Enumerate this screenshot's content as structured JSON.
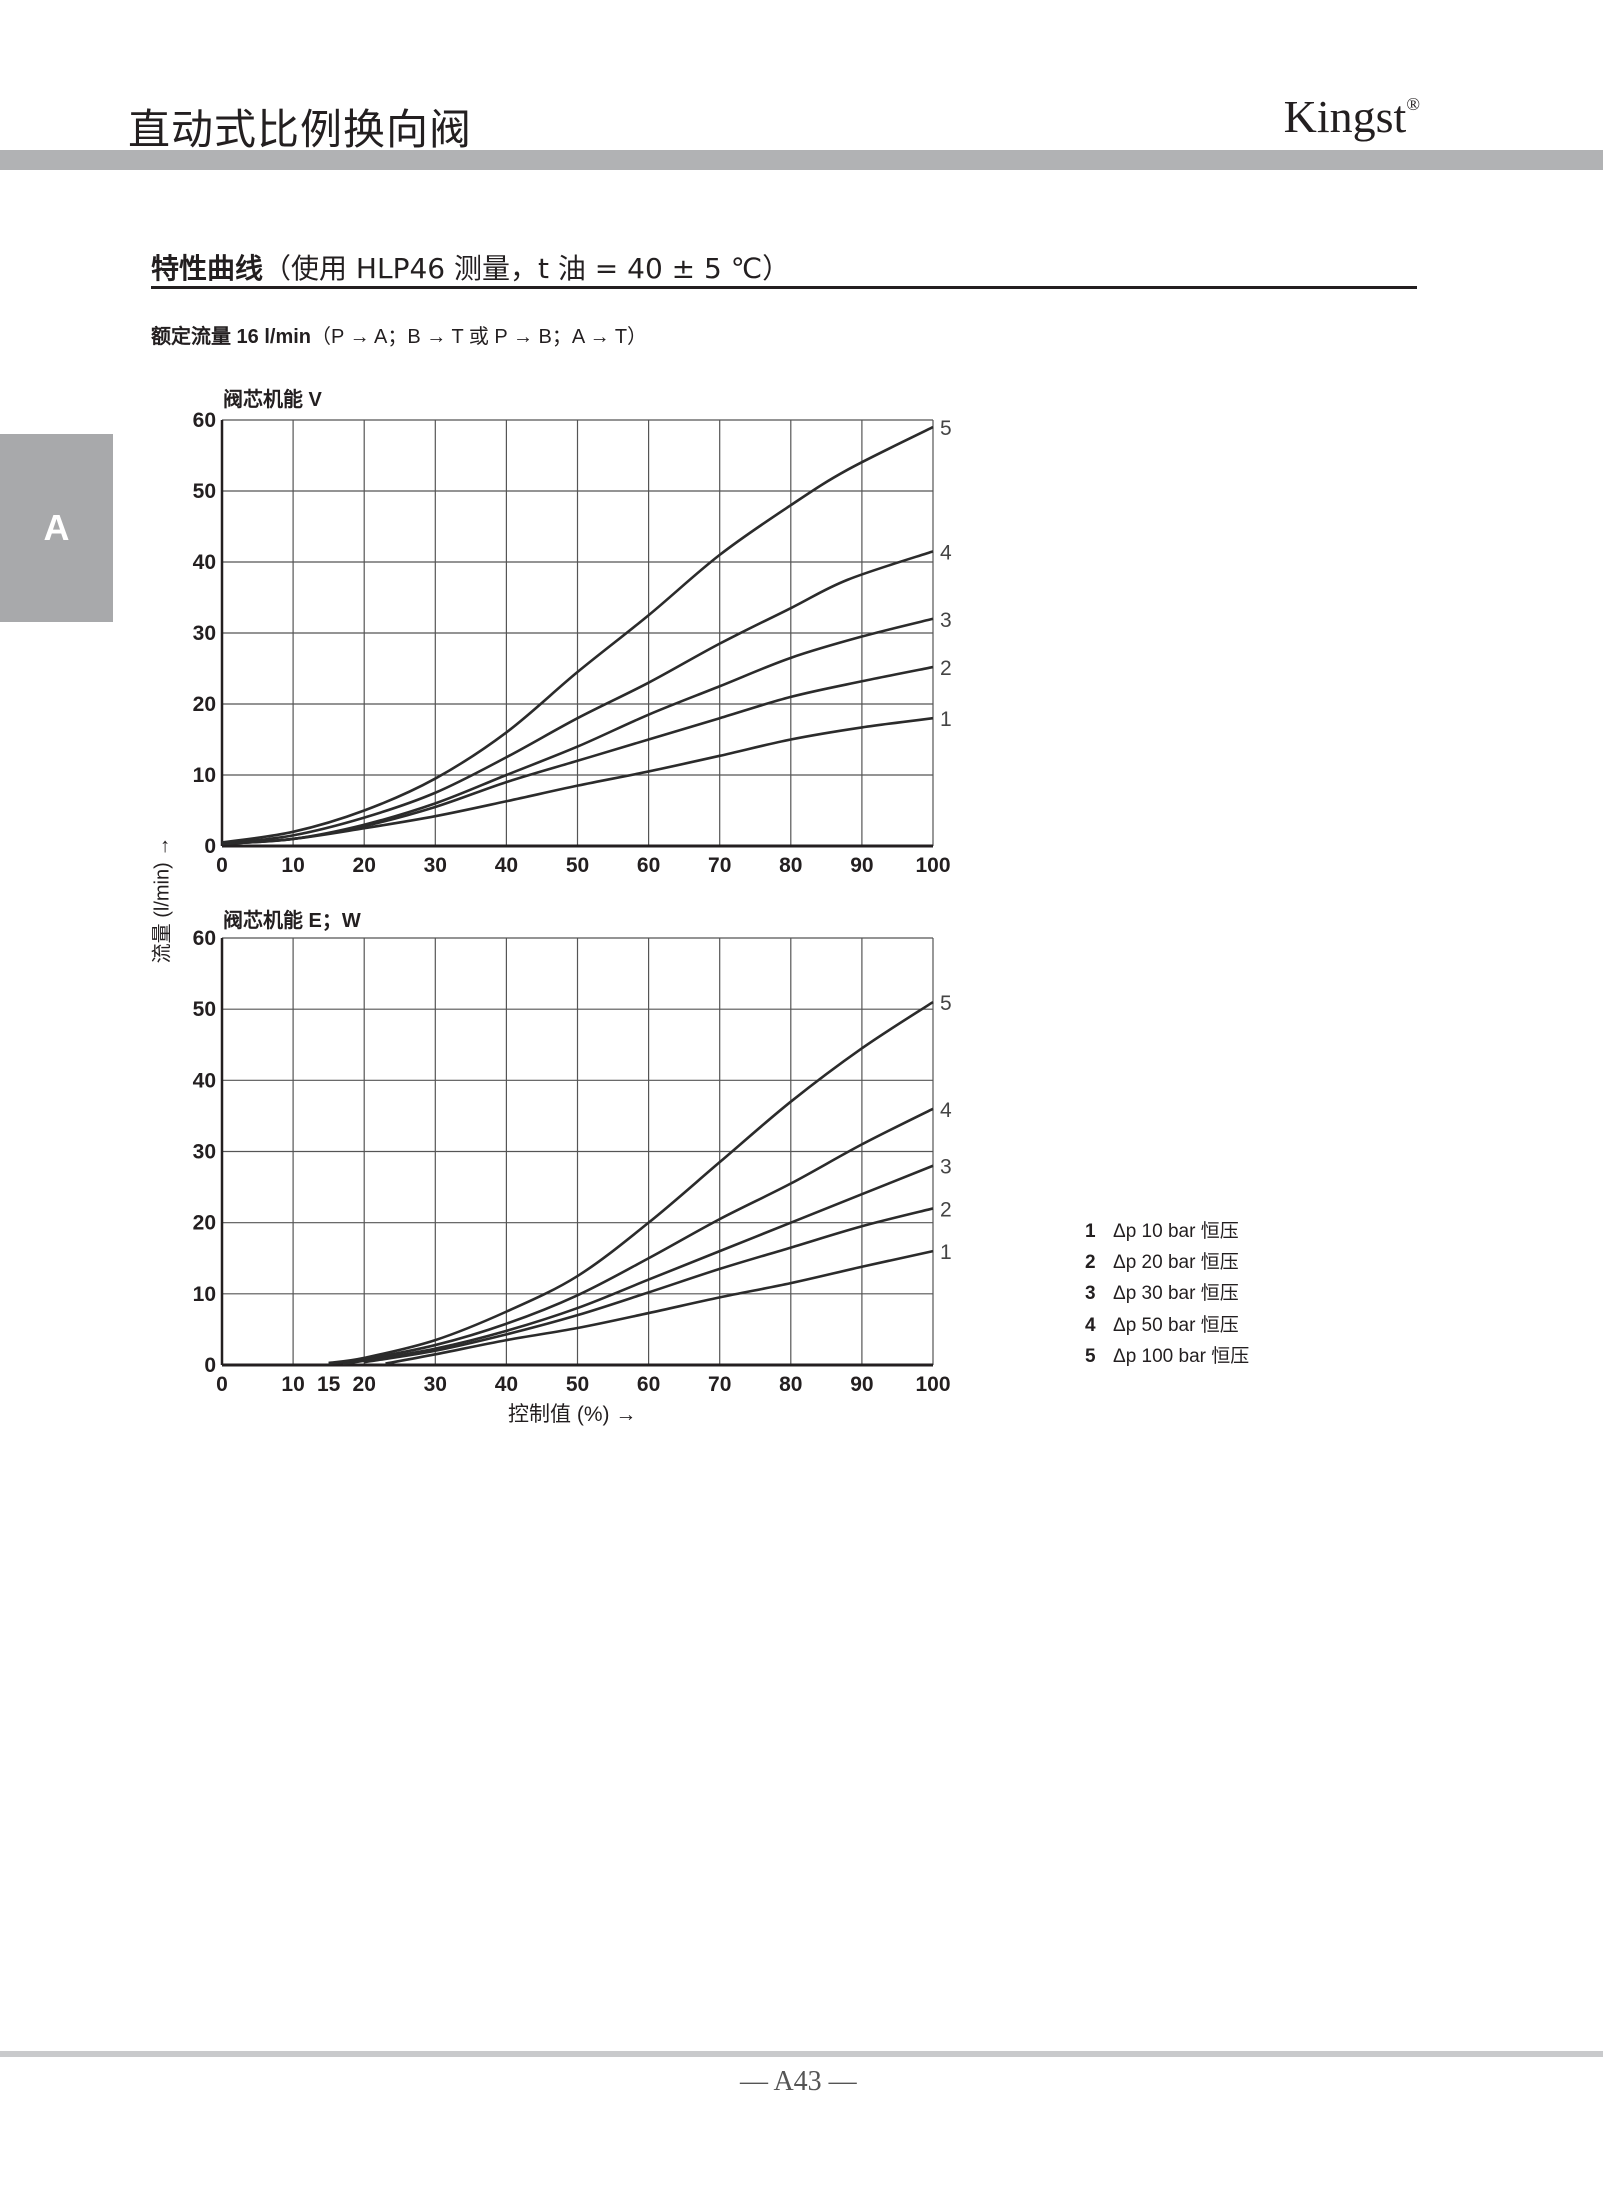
{
  "header": {
    "title": "直动式比例换向阀",
    "brand": "Kingst",
    "brand_mark": "®"
  },
  "side_tab": "A",
  "section": {
    "title_bold": "特性曲线",
    "title_rest": "（使用 HLP46 测量，t 油 = 40 ± 5 ℃）"
  },
  "subtitle": {
    "bold": "额定流量 16 l/min",
    "rest": "（P → A；B → T 或 P → B；A → T）"
  },
  "axis": {
    "ylabel": "流量 (l/min) →",
    "xlabel": "控制值 (%) →"
  },
  "legend": [
    {
      "num": "1",
      "text": "Δp 10 bar 恒压"
    },
    {
      "num": "2",
      "text": "Δp 20 bar 恒压"
    },
    {
      "num": "3",
      "text": "Δp 30 bar 恒压"
    },
    {
      "num": "4",
      "text": "Δp 50 bar 恒压"
    },
    {
      "num": "5",
      "text": "Δp 100 bar 恒压"
    }
  ],
  "page_number": "— A43 —",
  "chart_data": [
    {
      "type": "line",
      "title": "阀芯机能 V",
      "xlim": [
        0,
        100
      ],
      "ylim": [
        0,
        60
      ],
      "xticks": [
        0,
        10,
        20,
        30,
        40,
        50,
        60,
        70,
        80,
        90,
        100
      ],
      "yticks": [
        0,
        10,
        20,
        30,
        40,
        50,
        60
      ],
      "grid": true,
      "series": [
        {
          "name": "1",
          "points": [
            [
              0,
              0.3
            ],
            [
              10,
              1
            ],
            [
              20,
              2.5
            ],
            [
              30,
              4.2
            ],
            [
              40,
              6.3
            ],
            [
              50,
              8.5
            ],
            [
              60,
              10.5
            ],
            [
              70,
              12.7
            ],
            [
              80,
              15
            ],
            [
              90,
              16.7
            ],
            [
              100,
              18
            ]
          ]
        },
        {
          "name": "2",
          "points": [
            [
              0,
              0.3
            ],
            [
              10,
              1
            ],
            [
              20,
              2.8
            ],
            [
              30,
              5.5
            ],
            [
              40,
              9
            ],
            [
              50,
              12
            ],
            [
              60,
              15
            ],
            [
              70,
              18
            ],
            [
              80,
              21
            ],
            [
              90,
              23.2
            ],
            [
              100,
              25.2
            ]
          ]
        },
        {
          "name": "3",
          "points": [
            [
              0,
              0.3
            ],
            [
              10,
              1
            ],
            [
              20,
              3
            ],
            [
              30,
              6
            ],
            [
              40,
              10
            ],
            [
              50,
              14
            ],
            [
              60,
              18.5
            ],
            [
              70,
              22.5
            ],
            [
              80,
              26.5
            ],
            [
              90,
              29.5
            ],
            [
              100,
              32
            ]
          ]
        },
        {
          "name": "4",
          "points": [
            [
              0,
              0.3
            ],
            [
              10,
              1.5
            ],
            [
              20,
              4
            ],
            [
              30,
              7.5
            ],
            [
              40,
              12.5
            ],
            [
              50,
              18
            ],
            [
              60,
              23
            ],
            [
              70,
              28.5
            ],
            [
              80,
              33.5
            ],
            [
              88,
              37.5
            ],
            [
              100,
              41.5
            ]
          ]
        },
        {
          "name": "5",
          "points": [
            [
              0,
              0.5
            ],
            [
              10,
              2
            ],
            [
              20,
              5
            ],
            [
              30,
              9.5
            ],
            [
              40,
              16
            ],
            [
              50,
              24.5
            ],
            [
              60,
              32.5
            ],
            [
              70,
              41
            ],
            [
              80,
              48
            ],
            [
              88,
              53
            ],
            [
              100,
              59
            ]
          ]
        }
      ]
    },
    {
      "type": "line",
      "title": "阀芯机能 E；W",
      "xlim": [
        0,
        100
      ],
      "ylim": [
        0,
        60
      ],
      "xticks": [
        0,
        10,
        15,
        20,
        30,
        40,
        50,
        60,
        70,
        80,
        90,
        100
      ],
      "yticks": [
        0,
        10,
        20,
        30,
        40,
        50,
        60
      ],
      "grid": true,
      "series": [
        {
          "name": "1",
          "points": [
            [
              23,
              0.2
            ],
            [
              30,
              1.5
            ],
            [
              40,
              3.5
            ],
            [
              50,
              5.2
            ],
            [
              60,
              7.3
            ],
            [
              70,
              9.5
            ],
            [
              80,
              11.5
            ],
            [
              90,
              13.8
            ],
            [
              100,
              16
            ]
          ]
        },
        {
          "name": "2",
          "points": [
            [
              20,
              0.4
            ],
            [
              30,
              2
            ],
            [
              40,
              4.3
            ],
            [
              50,
              7
            ],
            [
              60,
              10.2
            ],
            [
              70,
              13.5
            ],
            [
              80,
              16.5
            ],
            [
              90,
              19.5
            ],
            [
              100,
              22
            ]
          ]
        },
        {
          "name": "3",
          "points": [
            [
              17,
              0.2
            ],
            [
              20,
              0.6
            ],
            [
              30,
              2.3
            ],
            [
              40,
              4.8
            ],
            [
              50,
              8
            ],
            [
              60,
              12
            ],
            [
              70,
              16
            ],
            [
              80,
              20
            ],
            [
              90,
              24
            ],
            [
              100,
              28
            ]
          ]
        },
        {
          "name": "4",
          "points": [
            [
              15,
              0.2
            ],
            [
              20,
              0.8
            ],
            [
              30,
              2.8
            ],
            [
              40,
              5.8
            ],
            [
              50,
              9.8
            ],
            [
              60,
              15
            ],
            [
              70,
              20.5
            ],
            [
              80,
              25.5
            ],
            [
              90,
              31
            ],
            [
              100,
              36
            ]
          ]
        },
        {
          "name": "5",
          "points": [
            [
              15,
              0.3
            ],
            [
              20,
              1
            ],
            [
              30,
              3.5
            ],
            [
              40,
              7.5
            ],
            [
              50,
              12.5
            ],
            [
              60,
              20
            ],
            [
              70,
              28.5
            ],
            [
              80,
              37
            ],
            [
              90,
              44.5
            ],
            [
              100,
              51
            ]
          ]
        }
      ]
    }
  ]
}
